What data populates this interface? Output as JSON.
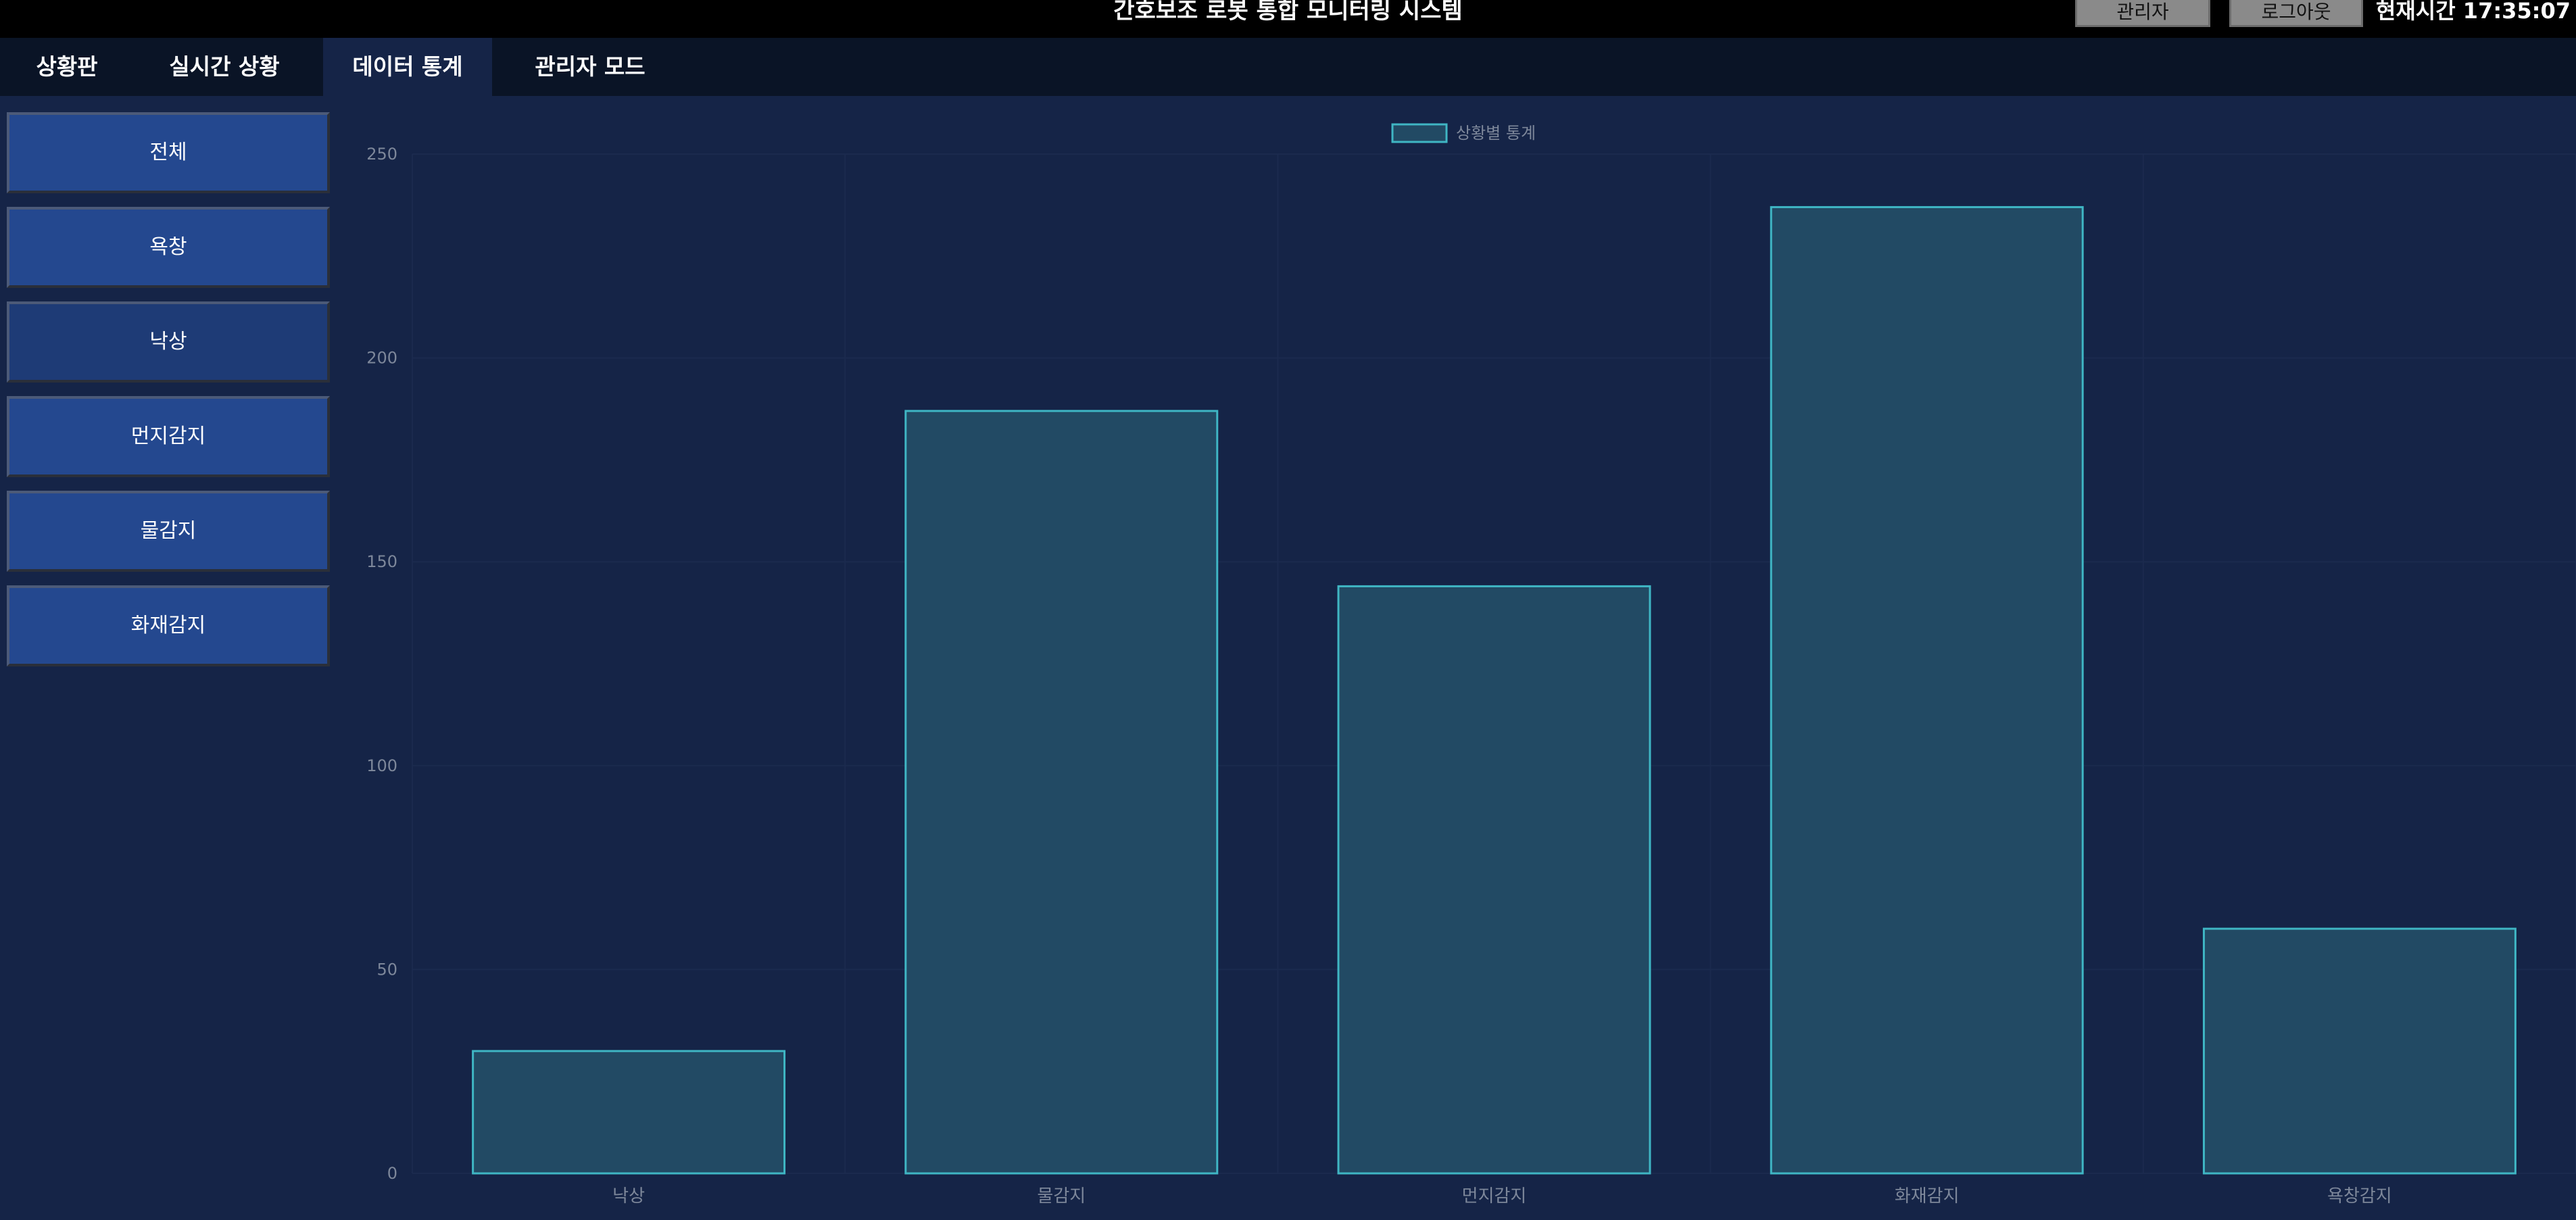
{
  "window": {
    "title": "간호보조 로봇 통합 모니터링 시스템",
    "admin_label": "관리자",
    "logout_label": "로그아웃",
    "clock": "현재시간 17:35:07"
  },
  "tabs": [
    {
      "label": "상황판"
    },
    {
      "label": "실시간 상황"
    },
    {
      "label": "데이터 통계",
      "active": true
    },
    {
      "label": "관리자 모드"
    }
  ],
  "sidebar": {
    "items": [
      {
        "label": "전체"
      },
      {
        "label": "욕창"
      },
      {
        "label": "낙상",
        "selected": true
      },
      {
        "label": "먼지감지"
      },
      {
        "label": "물감지"
      },
      {
        "label": "화재감지"
      }
    ]
  },
  "colors": {
    "background": "#152447",
    "bar_fill": "#224a64",
    "bar_border": "#3fb6c4",
    "axis_text": "#7d879a"
  },
  "chart_data": {
    "type": "bar",
    "categories": [
      "낙상",
      "물감지",
      "먼지감지",
      "화재감지",
      "욕창감지"
    ],
    "series": [
      {
        "name": "상황별 통계",
        "values": [
          30,
          187,
          144,
          237,
          60
        ]
      }
    ],
    "y_ticks": [
      "0",
      "50",
      "100",
      "150",
      "200",
      "250"
    ],
    "ylim": [
      0,
      250
    ],
    "legend_position": "top-center",
    "grid": true
  }
}
